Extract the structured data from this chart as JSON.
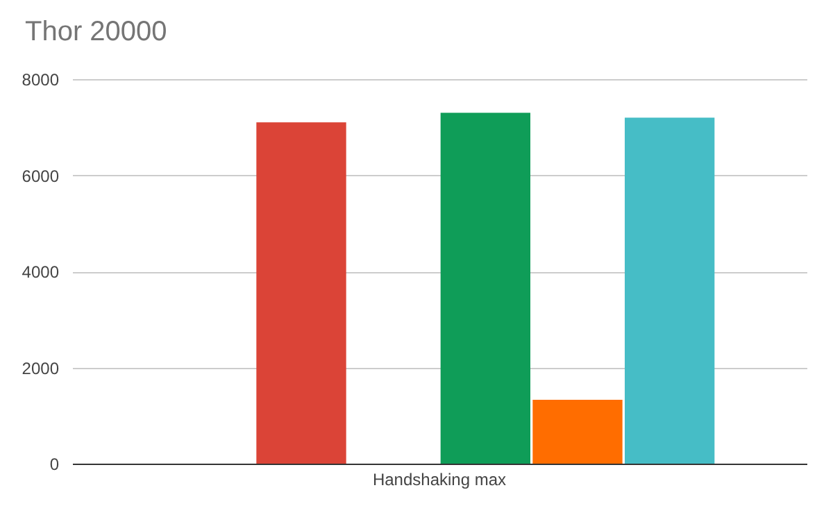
{
  "chart_data": {
    "type": "bar",
    "title": "Thor 20000",
    "categories": [
      "Handshaking max"
    ],
    "series": [
      {
        "color": "#4285f4",
        "values": [
          null
        ]
      },
      {
        "color": "#db4437",
        "values": [
          7100
        ]
      },
      {
        "color": "#f4b400",
        "values": [
          null
        ]
      },
      {
        "color": "#0f9d58",
        "values": [
          7300
        ]
      },
      {
        "color": "#ff6d00",
        "values": [
          1330
        ]
      },
      {
        "color": "#46bdc6",
        "values": [
          7200
        ]
      }
    ],
    "ylim": [
      0,
      8000
    ],
    "yticks": [
      0,
      2000,
      4000,
      6000,
      8000
    ],
    "grid": "y"
  }
}
